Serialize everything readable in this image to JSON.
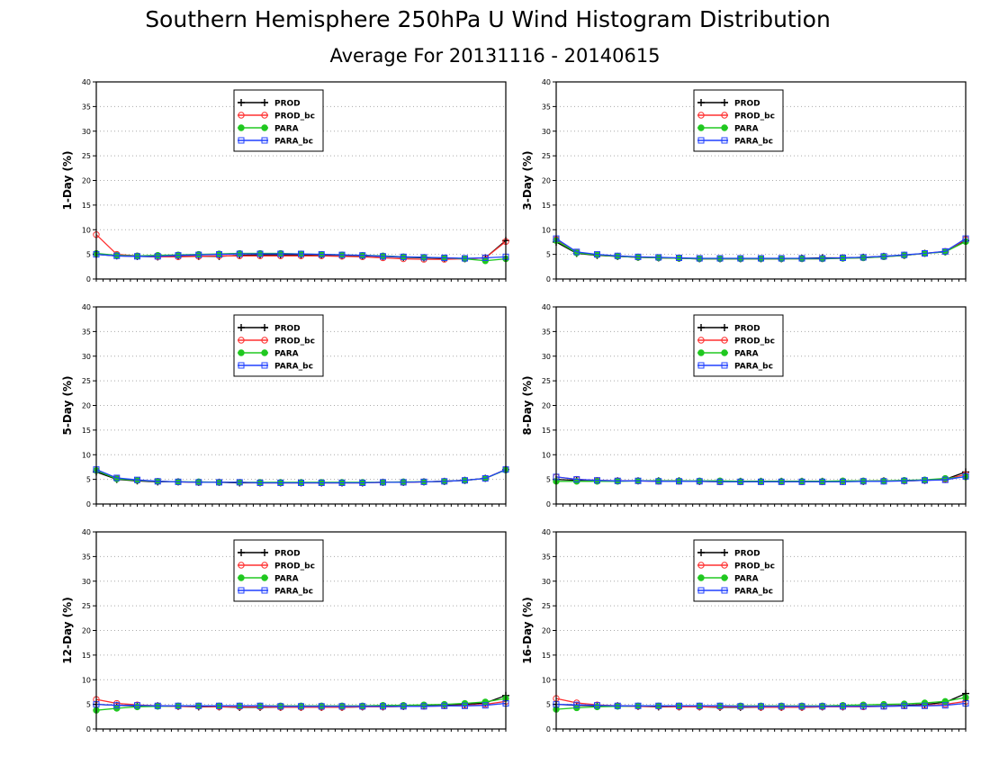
{
  "figure": {
    "title": "Southern Hemisphere 250hPa U Wind Histogram Distribution",
    "subtitle": "Average For 20131116 - 20140615"
  },
  "legend_labels": [
    "PROD",
    "PROD_bc",
    "PARA",
    "PARA_bc"
  ],
  "colors": {
    "PROD": "#000000",
    "PROD_bc": "#ff3030",
    "PARA": "#20c820",
    "PARA_bc": "#2040ff",
    "grid": "#aaaaaa"
  },
  "chart_data": [
    {
      "type": "line",
      "ylabel": "1-Day (%)",
      "ylim": [
        0,
        40
      ],
      "yticks": [
        0,
        5,
        10,
        15,
        20,
        25,
        30,
        35,
        40
      ],
      "grid": true,
      "legend_position": "top-center",
      "x": [
        1,
        2,
        3,
        4,
        5,
        6,
        7,
        8,
        9,
        10,
        11,
        12,
        13,
        14,
        15,
        16,
        17,
        18,
        19,
        20,
        21
      ],
      "series": [
        {
          "name": "PROD",
          "marker": "plus",
          "values": [
            5.0,
            4.7,
            4.6,
            4.5,
            4.6,
            4.6,
            4.6,
            4.8,
            4.9,
            4.9,
            4.9,
            4.9,
            4.8,
            4.7,
            4.6,
            4.4,
            4.3,
            4.2,
            4.1,
            4.3,
            7.8
          ]
        },
        {
          "name": "PROD_bc",
          "marker": "circle",
          "values": [
            9.0,
            5.0,
            4.7,
            4.5,
            4.5,
            4.6,
            4.7,
            4.7,
            4.7,
            4.7,
            4.7,
            4.7,
            4.6,
            4.5,
            4.3,
            4.1,
            4.0,
            4.0,
            4.1,
            4.3,
            7.6
          ]
        },
        {
          "name": "PARA",
          "marker": "dot",
          "values": [
            5.2,
            4.8,
            4.7,
            4.8,
            4.9,
            5.0,
            5.1,
            5.2,
            5.2,
            5.2,
            5.1,
            5.0,
            4.9,
            4.8,
            4.7,
            4.5,
            4.4,
            4.3,
            4.1,
            3.7,
            4.1
          ]
        },
        {
          "name": "PARA_bc",
          "marker": "square",
          "values": [
            5.0,
            4.7,
            4.6,
            4.6,
            4.8,
            4.9,
            5.0,
            5.1,
            5.1,
            5.1,
            5.1,
            5.0,
            4.9,
            4.8,
            4.6,
            4.5,
            4.4,
            4.3,
            4.2,
            4.3,
            4.5
          ]
        }
      ]
    },
    {
      "type": "line",
      "ylabel": "3-Day (%)",
      "ylim": [
        0,
        40
      ],
      "yticks": [
        0,
        5,
        10,
        15,
        20,
        25,
        30,
        35,
        40
      ],
      "grid": true,
      "legend_position": "top-center",
      "x": [
        1,
        2,
        3,
        4,
        5,
        6,
        7,
        8,
        9,
        10,
        11,
        12,
        13,
        14,
        15,
        16,
        17,
        18,
        19,
        20,
        21
      ],
      "series": [
        {
          "name": "PROD",
          "marker": "plus",
          "values": [
            7.5,
            5.2,
            4.8,
            4.6,
            4.4,
            4.3,
            4.2,
            4.1,
            4.1,
            4.1,
            4.1,
            4.1,
            4.2,
            4.3,
            4.3,
            4.4,
            4.6,
            4.8,
            5.2,
            5.5,
            7.8
          ]
        },
        {
          "name": "PROD_bc",
          "marker": "circle",
          "values": [
            8.0,
            5.4,
            4.9,
            4.6,
            4.4,
            4.3,
            4.2,
            4.1,
            4.1,
            4.1,
            4.1,
            4.1,
            4.1,
            4.1,
            4.2,
            4.3,
            4.5,
            4.8,
            5.2,
            5.6,
            8.0
          ]
        },
        {
          "name": "PARA",
          "marker": "dot",
          "values": [
            7.8,
            5.3,
            4.9,
            4.6,
            4.4,
            4.3,
            4.2,
            4.1,
            4.1,
            4.1,
            4.1,
            4.1,
            4.1,
            4.1,
            4.2,
            4.3,
            4.5,
            4.8,
            5.2,
            5.5,
            7.6
          ]
        },
        {
          "name": "PARA_bc",
          "marker": "square",
          "values": [
            8.2,
            5.5,
            5.0,
            4.7,
            4.5,
            4.4,
            4.3,
            4.2,
            4.2,
            4.2,
            4.2,
            4.2,
            4.2,
            4.2,
            4.3,
            4.4,
            4.6,
            4.9,
            5.2,
            5.6,
            8.2
          ]
        }
      ]
    },
    {
      "type": "line",
      "ylabel": "5-Day (%)",
      "ylim": [
        0,
        40
      ],
      "yticks": [
        0,
        5,
        10,
        15,
        20,
        25,
        30,
        35,
        40
      ],
      "grid": true,
      "legend_position": "top-center",
      "x": [
        1,
        2,
        3,
        4,
        5,
        6,
        7,
        8,
        9,
        10,
        11,
        12,
        13,
        14,
        15,
        16,
        17,
        18,
        19,
        20,
        21
      ],
      "series": [
        {
          "name": "PROD",
          "marker": "plus",
          "values": [
            6.5,
            5.0,
            4.7,
            4.5,
            4.5,
            4.4,
            4.4,
            4.3,
            4.3,
            4.3,
            4.3,
            4.3,
            4.3,
            4.3,
            4.4,
            4.4,
            4.5,
            4.6,
            4.8,
            5.2,
            7.0
          ]
        },
        {
          "name": "PROD_bc",
          "marker": "circle",
          "values": [
            6.8,
            5.2,
            4.8,
            4.6,
            4.5,
            4.4,
            4.4,
            4.4,
            4.3,
            4.3,
            4.3,
            4.3,
            4.3,
            4.3,
            4.4,
            4.4,
            4.5,
            4.6,
            4.8,
            5.2,
            7.0
          ]
        },
        {
          "name": "PARA",
          "marker": "dot",
          "values": [
            6.8,
            5.1,
            4.8,
            4.6,
            4.5,
            4.5,
            4.4,
            4.4,
            4.4,
            4.4,
            4.4,
            4.4,
            4.4,
            4.4,
            4.4,
            4.5,
            4.5,
            4.6,
            4.8,
            5.2,
            6.9
          ]
        },
        {
          "name": "PARA_bc",
          "marker": "square",
          "values": [
            7.0,
            5.3,
            4.9,
            4.6,
            4.5,
            4.4,
            4.4,
            4.4,
            4.3,
            4.3,
            4.3,
            4.3,
            4.3,
            4.3,
            4.4,
            4.4,
            4.5,
            4.6,
            4.8,
            5.2,
            7.0
          ]
        }
      ]
    },
    {
      "type": "line",
      "ylabel": "8-Day (%)",
      "ylim": [
        0,
        40
      ],
      "yticks": [
        0,
        5,
        10,
        15,
        20,
        25,
        30,
        35,
        40
      ],
      "grid": true,
      "legend_position": "top-center",
      "x": [
        1,
        2,
        3,
        4,
        5,
        6,
        7,
        8,
        9,
        10,
        11,
        12,
        13,
        14,
        15,
        16,
        17,
        18,
        19,
        20,
        21
      ],
      "series": [
        {
          "name": "PROD",
          "marker": "plus",
          "values": [
            5.0,
            4.8,
            4.7,
            4.7,
            4.7,
            4.7,
            4.7,
            4.6,
            4.6,
            4.6,
            4.6,
            4.6,
            4.6,
            4.6,
            4.6,
            4.6,
            4.7,
            4.7,
            4.8,
            5.0,
            6.5
          ]
        },
        {
          "name": "PROD_bc",
          "marker": "circle",
          "values": [
            5.5,
            5.0,
            4.8,
            4.7,
            4.7,
            4.6,
            4.6,
            4.6,
            4.5,
            4.5,
            4.5,
            4.5,
            4.5,
            4.5,
            4.6,
            4.6,
            4.7,
            4.7,
            4.8,
            5.0,
            6.0
          ]
        },
        {
          "name": "PARA",
          "marker": "dot",
          "values": [
            4.6,
            4.6,
            4.6,
            4.6,
            4.7,
            4.7,
            4.7,
            4.7,
            4.7,
            4.6,
            4.6,
            4.6,
            4.6,
            4.6,
            4.7,
            4.7,
            4.7,
            4.8,
            4.9,
            5.2,
            5.5
          ]
        },
        {
          "name": "PARA_bc",
          "marker": "square",
          "values": [
            5.5,
            5.0,
            4.8,
            4.7,
            4.7,
            4.6,
            4.6,
            4.6,
            4.5,
            4.5,
            4.5,
            4.5,
            4.5,
            4.5,
            4.5,
            4.6,
            4.6,
            4.7,
            4.8,
            4.9,
            5.6
          ]
        }
      ]
    },
    {
      "type": "line",
      "ylabel": "12-Day (%)",
      "ylim": [
        0,
        40
      ],
      "yticks": [
        0,
        5,
        10,
        15,
        20,
        25,
        30,
        35,
        40
      ],
      "grid": true,
      "legend_position": "top-center",
      "x": [
        1,
        2,
        3,
        4,
        5,
        6,
        7,
        8,
        9,
        10,
        11,
        12,
        13,
        14,
        15,
        16,
        17,
        18,
        19,
        20,
        21
      ],
      "series": [
        {
          "name": "PROD",
          "marker": "plus",
          "values": [
            5.0,
            4.8,
            4.7,
            4.7,
            4.6,
            4.5,
            4.5,
            4.4,
            4.4,
            4.4,
            4.4,
            4.4,
            4.4,
            4.5,
            4.5,
            4.6,
            4.7,
            4.8,
            5.0,
            5.3,
            6.8
          ]
        },
        {
          "name": "PROD_bc",
          "marker": "circle",
          "values": [
            6.0,
            5.2,
            4.9,
            4.7,
            4.6,
            4.6,
            4.5,
            4.5,
            4.5,
            4.4,
            4.4,
            4.4,
            4.4,
            4.5,
            4.5,
            4.6,
            4.6,
            4.7,
            4.8,
            5.0,
            5.6
          ]
        },
        {
          "name": "PARA",
          "marker": "dot",
          "values": [
            3.8,
            4.2,
            4.5,
            4.6,
            4.7,
            4.7,
            4.7,
            4.7,
            4.7,
            4.7,
            4.7,
            4.7,
            4.7,
            4.7,
            4.8,
            4.8,
            4.9,
            5.0,
            5.2,
            5.5,
            6.2
          ]
        },
        {
          "name": "PARA_bc",
          "marker": "square",
          "values": [
            5.0,
            4.8,
            4.8,
            4.7,
            4.7,
            4.7,
            4.7,
            4.7,
            4.7,
            4.6,
            4.6,
            4.6,
            4.6,
            4.6,
            4.6,
            4.6,
            4.6,
            4.7,
            4.7,
            4.8,
            5.2
          ]
        }
      ]
    },
    {
      "type": "line",
      "ylabel": "16-Day (%)",
      "ylim": [
        0,
        40
      ],
      "yticks": [
        0,
        5,
        10,
        15,
        20,
        25,
        30,
        35,
        40
      ],
      "grid": true,
      "legend_position": "top-center",
      "x": [
        1,
        2,
        3,
        4,
        5,
        6,
        7,
        8,
        9,
        10,
        11,
        12,
        13,
        14,
        15,
        16,
        17,
        18,
        19,
        20,
        21
      ],
      "series": [
        {
          "name": "PROD",
          "marker": "plus",
          "values": [
            5.0,
            4.8,
            4.7,
            4.7,
            4.6,
            4.5,
            4.5,
            4.5,
            4.4,
            4.4,
            4.4,
            4.4,
            4.4,
            4.5,
            4.5,
            4.6,
            4.7,
            4.8,
            5.0,
            5.4,
            7.2
          ]
        },
        {
          "name": "PROD_bc",
          "marker": "circle",
          "values": [
            6.2,
            5.3,
            4.9,
            4.7,
            4.6,
            4.6,
            4.5,
            4.5,
            4.5,
            4.5,
            4.4,
            4.4,
            4.4,
            4.5,
            4.5,
            4.5,
            4.6,
            4.7,
            4.8,
            5.0,
            5.6
          ]
        },
        {
          "name": "PARA",
          "marker": "dot",
          "values": [
            4.0,
            4.3,
            4.5,
            4.6,
            4.7,
            4.7,
            4.7,
            4.7,
            4.7,
            4.7,
            4.7,
            4.7,
            4.7,
            4.7,
            4.8,
            4.9,
            5.0,
            5.1,
            5.3,
            5.6,
            6.4
          ]
        },
        {
          "name": "PARA_bc",
          "marker": "square",
          "values": [
            5.0,
            4.9,
            4.8,
            4.7,
            4.7,
            4.7,
            4.7,
            4.7,
            4.7,
            4.6,
            4.6,
            4.6,
            4.6,
            4.6,
            4.6,
            4.6,
            4.6,
            4.7,
            4.7,
            4.8,
            5.2
          ]
        }
      ]
    }
  ]
}
